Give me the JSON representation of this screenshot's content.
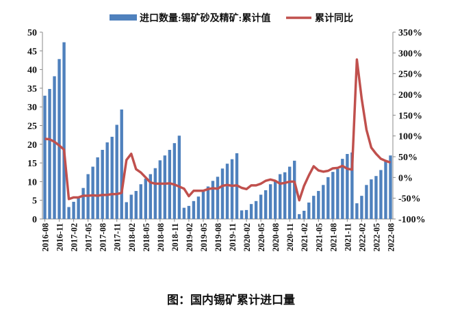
{
  "caption": "图：国内锡矿累计进口量",
  "chart_data": {
    "type": "bar+line",
    "legend_position": "top",
    "grid": false,
    "x": [
      "2016-08",
      "2016-09",
      "2016-10",
      "2016-11",
      "2016-12",
      "2017-01",
      "2017-02",
      "2017-03",
      "2017-04",
      "2017-05",
      "2017-06",
      "2017-07",
      "2017-08",
      "2017-09",
      "2017-10",
      "2017-11",
      "2017-12",
      "2018-01",
      "2018-02",
      "2018-03",
      "2018-04",
      "2018-05",
      "2018-06",
      "2018-07",
      "2018-08",
      "2018-09",
      "2018-10",
      "2018-11",
      "2018-12",
      "2019-01",
      "2019-02",
      "2019-03",
      "2019-04",
      "2019-05",
      "2019-06",
      "2019-07",
      "2019-08",
      "2019-09",
      "2019-10",
      "2019-11",
      "2019-12",
      "2020-01",
      "2020-02",
      "2020-03",
      "2020-04",
      "2020-05",
      "2020-06",
      "2020-07",
      "2020-08",
      "2020-09",
      "2020-10",
      "2020-11",
      "2020-12",
      "2021-01",
      "2021-02",
      "2021-03",
      "2021-04",
      "2021-05",
      "2021-06",
      "2021-07",
      "2021-08",
      "2021-09",
      "2021-10",
      "2021-11",
      "2021-12",
      "2022-01",
      "2022-02",
      "2022-03",
      "2022-04",
      "2022-05",
      "2022-06",
      "2022-07",
      "2022-08"
    ],
    "x_tick_labels": [
      "2016-08",
      "2016-11",
      "2017-02",
      "2017-05",
      "2017-08",
      "2017-11",
      "2018-02",
      "2018-05",
      "2018-08",
      "2018-11",
      "2019-02",
      "2019-05",
      "2019-08",
      "2019-11",
      "2020-02",
      "2020-05",
      "2020-08",
      "2020-11",
      "2021-02",
      "2021-05",
      "2021-08",
      "2021-11",
      "2022-02",
      "2022-05",
      "2022-08"
    ],
    "y_left": {
      "range": [
        0,
        50
      ],
      "ticks": [
        "0",
        "5",
        "10",
        "15",
        "20",
        "25",
        "30",
        "35",
        "40",
        "45",
        "50"
      ]
    },
    "y_right": {
      "range": [
        -100,
        350
      ],
      "ticks": [
        "-100%",
        "-50%",
        "0%",
        "50%",
        "100%",
        "150%",
        "200%",
        "250%",
        "300%",
        "350%"
      ]
    },
    "series": [
      {
        "name": "进口数量:锡矿砂及精矿:累计值",
        "type": "bar",
        "axis": "left",
        "color": "#4f81bd",
        "values": [
          33,
          34.8,
          38.2,
          42.8,
          47.3,
          3.2,
          4.6,
          6,
          8.3,
          12,
          14,
          16.5,
          18.5,
          20.5,
          22,
          25.2,
          29.3,
          4.5,
          6.5,
          7.5,
          9.3,
          10.8,
          12,
          13.6,
          15.7,
          17,
          18.5,
          20.3,
          22.3,
          3,
          3.5,
          4.8,
          6,
          7.8,
          8.7,
          10.2,
          11.3,
          13.5,
          14.8,
          16,
          17.6,
          2.3,
          2.4,
          4,
          4.8,
          6.5,
          7.7,
          9.3,
          10.3,
          12,
          12.5,
          14,
          15.6,
          1.3,
          2.2,
          4.4,
          6.2,
          7.5,
          9.1,
          11.2,
          12.6,
          13.4,
          16.1,
          17.4,
          17.8,
          4.2,
          6.2,
          9.1,
          10.6,
          11.5,
          13.1,
          15.4,
          17
        ]
      },
      {
        "name": "累计同比",
        "type": "line",
        "axis": "right",
        "color": "#c0504d",
        "values": [
          93,
          92,
          86,
          77,
          67,
          -52,
          -48,
          -48,
          -44,
          -44,
          -43,
          -44,
          -42,
          -42,
          -40,
          -40,
          -37,
          42,
          57,
          20,
          12,
          0,
          -12,
          -15,
          -15,
          -15,
          -14,
          -17,
          -22,
          -27,
          -45,
          -32,
          -32,
          -32,
          -28,
          -26,
          -27,
          -20,
          -18,
          -20,
          -19,
          -25,
          -28,
          -19,
          -19,
          -15,
          -8,
          -5,
          -8,
          -15,
          -13,
          -10,
          -10,
          -55,
          -20,
          5,
          27,
          17,
          14,
          16,
          22,
          23,
          28,
          21,
          19,
          284,
          190,
          115,
          72,
          57,
          45,
          40,
          36
        ]
      }
    ]
  }
}
